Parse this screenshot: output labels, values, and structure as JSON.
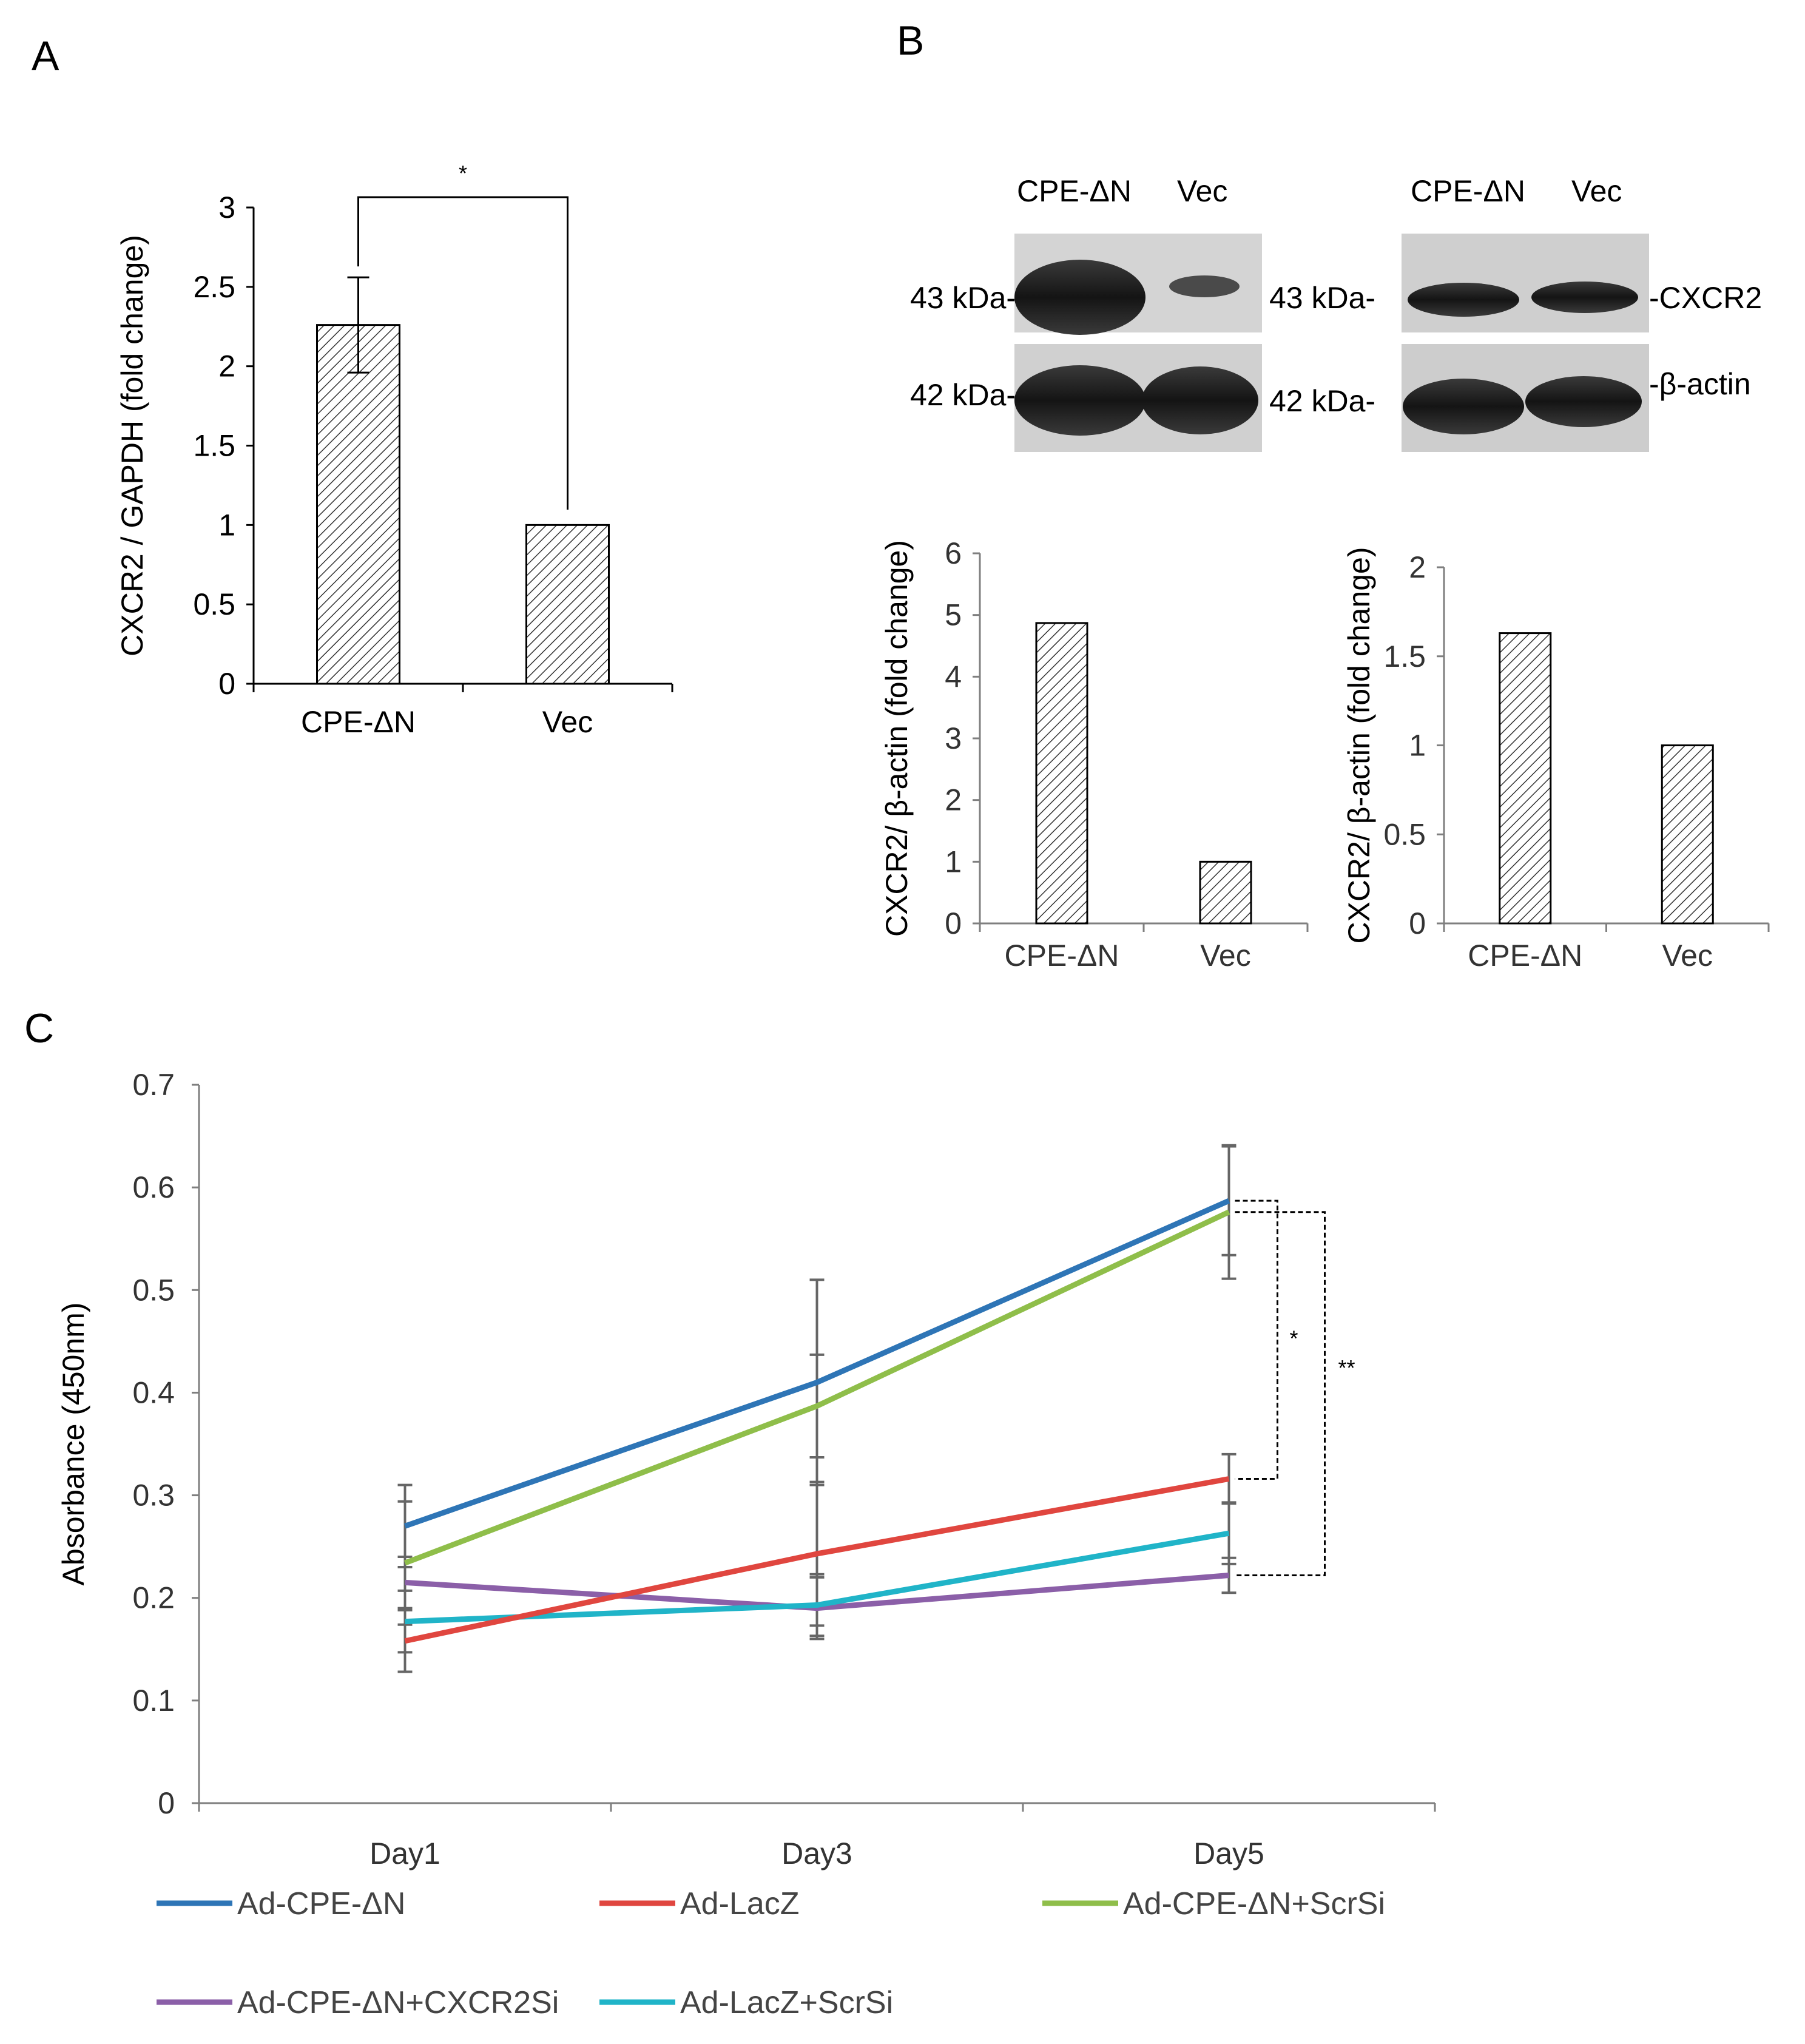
{
  "panels": {
    "a": "A",
    "b": "B",
    "c": "C"
  },
  "blot": {
    "left": {
      "lane1": "CPE-ΔN",
      "lane2": "Vec",
      "mw_top": "43 kDa-",
      "mw_bottom": "42 kDa-"
    },
    "right": {
      "lane1": "CPE-ΔN",
      "lane2": "Vec",
      "mw_top": "43 kDa-",
      "mw_bottom": "42 kDa-",
      "band_top": "-CXCR2",
      "band_bottom": "-β-actin"
    }
  },
  "colors": {
    "blue": "#2e75b6",
    "red": "#e0463f",
    "green": "#8fbe4a",
    "purple": "#8b5fa8",
    "cyan": "#20b4c8"
  },
  "chart_data": [
    {
      "id": "A",
      "type": "bar",
      "title": "",
      "categories": [
        "CPE-ΔN",
        "Vec"
      ],
      "values": [
        2.26,
        1.0
      ],
      "errors": [
        0.3,
        0
      ],
      "ylabel": "CXCR2 / GAPDH (fold change)",
      "xlabel": "",
      "ylim": [
        0,
        3
      ],
      "yticks": [
        "0",
        "0.5",
        "1",
        "1.5",
        "2",
        "2.5",
        "3"
      ],
      "significance": "*"
    },
    {
      "id": "B1",
      "type": "bar",
      "title": "",
      "categories": [
        "CPE-ΔN",
        "Vec"
      ],
      "values": [
        4.87,
        1.0
      ],
      "ylabel": "CXCR2/ β-actin (fold change)",
      "xlabel": "",
      "ylim": [
        0,
        6
      ],
      "yticks": [
        "0",
        "1",
        "2",
        "3",
        "4",
        "5",
        "6"
      ]
    },
    {
      "id": "B2",
      "type": "bar",
      "title": "",
      "categories": [
        "CPE-ΔN",
        "Vec"
      ],
      "values": [
        1.63,
        1.0
      ],
      "ylabel": "CXCR2/ β-actin (fold change)",
      "xlabel": "",
      "ylim": [
        0,
        2
      ],
      "yticks": [
        "0",
        "0.5",
        "1",
        "1.5",
        "2"
      ]
    },
    {
      "id": "C",
      "type": "line",
      "title": "",
      "categories": [
        "Day1",
        "Day3",
        "Day5"
      ],
      "ylabel": "Absorbance (450nm)",
      "xlabel": "",
      "ylim": [
        0,
        0.7
      ],
      "yticks": [
        "0",
        "0.1",
        "0.2",
        "0.3",
        "0.4",
        "0.5",
        "0.6",
        "0.7"
      ],
      "legend_position": "bottom",
      "series": [
        {
          "name": "Ad-CPE-ΔN",
          "color_key": "blue",
          "values": [
            0.27,
            0.41,
            0.587
          ],
          "errors": [
            0.04,
            0.1,
            0.053
          ]
        },
        {
          "name": "Ad-LacZ",
          "color_key": "red",
          "values": [
            0.158,
            0.243,
            0.316
          ],
          "errors": [
            0.03,
            0.07,
            0.024
          ]
        },
        {
          "name": "Ad-CPE-ΔN+ScrSi",
          "color_key": "green",
          "values": [
            0.234,
            0.387,
            0.576
          ],
          "errors": [
            0.06,
            0.05,
            0.065
          ]
        },
        {
          "name": "Ad-CPE-ΔN+CXCR2Si",
          "color_key": "purple",
          "values": [
            0.215,
            0.19,
            0.222
          ],
          "errors": [
            0.025,
            0.03,
            0.017
          ]
        },
        {
          "name": "Ad-LacZ+ScrSi",
          "color_key": "cyan",
          "values": [
            0.177,
            0.193,
            0.263
          ],
          "errors": [
            0.03,
            0.03,
            0.03
          ]
        }
      ],
      "significance": [
        "*",
        "**"
      ]
    }
  ]
}
